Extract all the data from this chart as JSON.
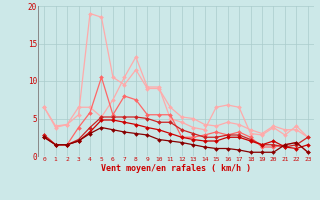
{
  "background_color": "#cce8e8",
  "grid_color": "#aacccc",
  "xlabel": "Vent moyen/en rafales ( km/h )",
  "xlabel_color": "#cc0000",
  "tick_color": "#cc0000",
  "x_ticks": [
    0,
    1,
    2,
    3,
    4,
    5,
    6,
    7,
    8,
    9,
    10,
    11,
    12,
    13,
    14,
    15,
    16,
    17,
    18,
    19,
    20,
    21,
    22,
    23
  ],
  "ylim": [
    0,
    20
  ],
  "yticks": [
    0,
    5,
    10,
    15,
    20
  ],
  "series": [
    {
      "color": "#ffaaaa",
      "linewidth": 0.9,
      "marker": "D",
      "markersize": 2.0,
      "values": [
        6.5,
        4.0,
        4.2,
        5.5,
        19.0,
        18.5,
        10.5,
        9.5,
        11.5,
        9.0,
        9.0,
        6.5,
        5.2,
        5.0,
        4.2,
        4.0,
        4.5,
        4.2,
        3.5,
        3.0,
        4.0,
        3.5,
        3.5,
        2.5
      ]
    },
    {
      "color": "#ffaaaa",
      "linewidth": 0.9,
      "marker": "D",
      "markersize": 2.0,
      "values": [
        6.5,
        3.8,
        4.2,
        6.5,
        6.5,
        5.2,
        7.5,
        10.5,
        13.2,
        9.2,
        9.2,
        5.0,
        4.5,
        3.8,
        3.5,
        6.5,
        6.8,
        6.5,
        3.0,
        2.8,
        3.8,
        2.8,
        4.0,
        2.5
      ]
    },
    {
      "color": "#ff6666",
      "linewidth": 0.9,
      "marker": "D",
      "markersize": 2.0,
      "values": [
        2.8,
        1.5,
        1.5,
        3.8,
        5.8,
        10.5,
        5.5,
        8.0,
        7.5,
        5.5,
        5.5,
        5.5,
        2.5,
        2.5,
        2.8,
        3.2,
        2.8,
        3.2,
        2.5,
        1.2,
        1.2,
        1.5,
        1.8,
        0.5
      ]
    },
    {
      "color": "#cc2222",
      "linewidth": 0.9,
      "marker": "D",
      "markersize": 2.0,
      "values": [
        2.8,
        1.5,
        1.5,
        2.2,
        3.8,
        5.2,
        5.2,
        5.2,
        5.2,
        5.0,
        4.5,
        4.5,
        3.5,
        3.0,
        2.5,
        2.5,
        2.8,
        2.8,
        2.2,
        1.5,
        1.5,
        1.2,
        1.5,
        2.5
      ]
    },
    {
      "color": "#cc0000",
      "linewidth": 0.9,
      "marker": "D",
      "markersize": 2.0,
      "values": [
        2.5,
        1.5,
        1.5,
        2.0,
        3.2,
        4.8,
        4.8,
        4.5,
        4.2,
        3.8,
        3.5,
        3.0,
        2.5,
        2.2,
        2.0,
        2.0,
        2.5,
        2.5,
        2.0,
        1.5,
        2.0,
        1.2,
        1.0,
        1.5
      ]
    },
    {
      "color": "#880000",
      "linewidth": 0.9,
      "marker": "D",
      "markersize": 2.0,
      "values": [
        2.5,
        1.5,
        1.5,
        2.0,
        3.0,
        3.8,
        3.5,
        3.2,
        3.0,
        2.8,
        2.2,
        2.0,
        1.8,
        1.5,
        1.2,
        1.0,
        1.0,
        0.8,
        0.5,
        0.5,
        0.5,
        1.5,
        1.8,
        0.5
      ]
    }
  ]
}
